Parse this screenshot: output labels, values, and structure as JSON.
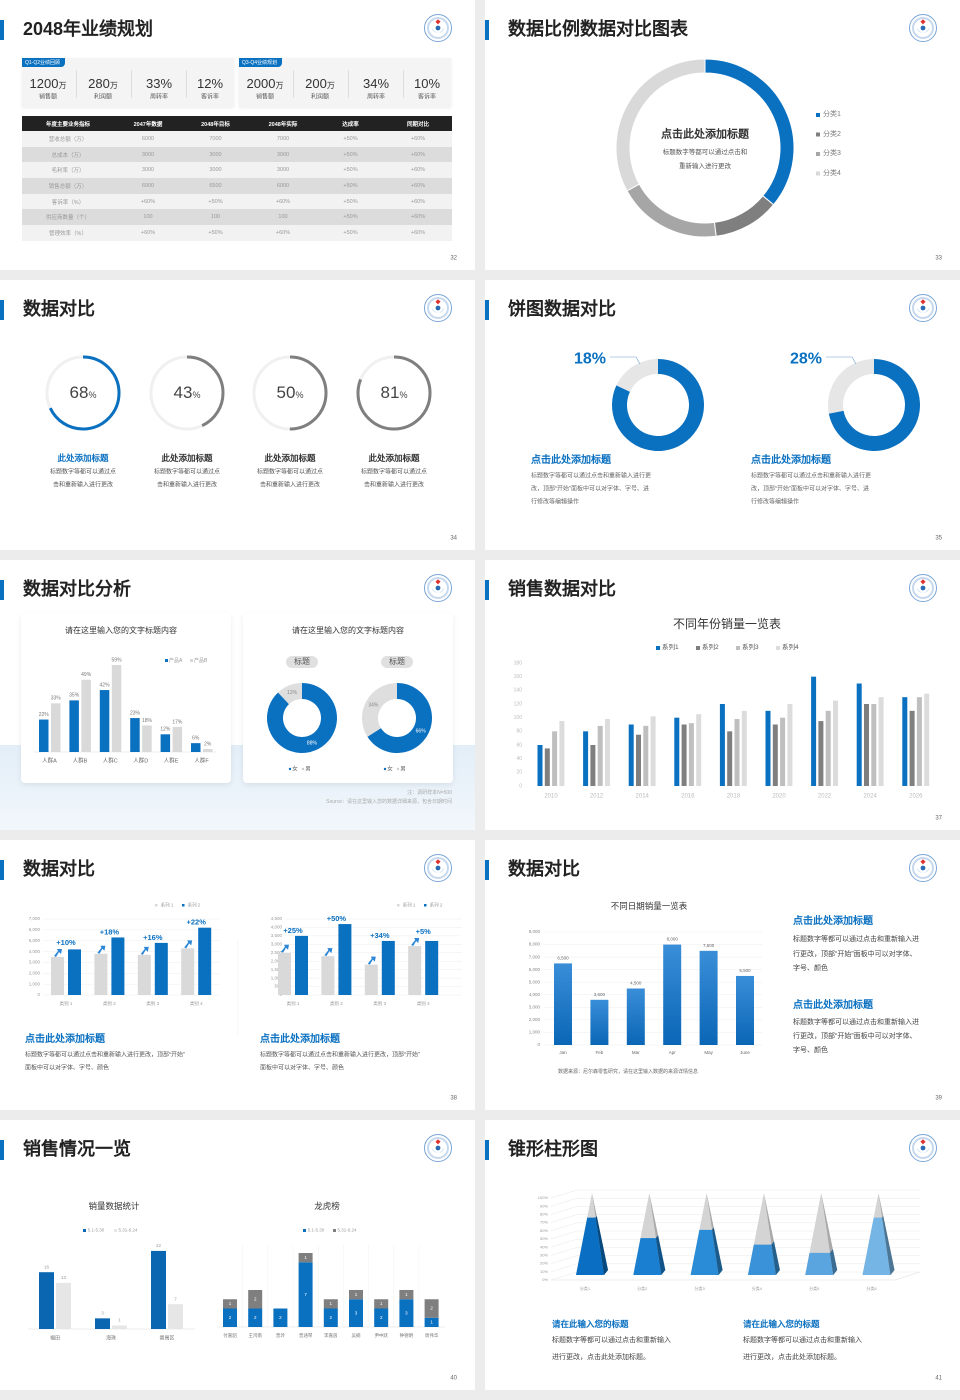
{
  "colors": {
    "accent": "#0a70c0",
    "dark_gray": "#7f7f7f",
    "mid_gray": "#a6a6a6",
    "light_gray": "#d9d9d9",
    "background": "#ececec"
  },
  "icons": {
    "logo": "round-emblem-logo",
    "arrow": "growth-arrow-icon"
  },
  "slides": {
    "s32": {
      "title": "2048年业绩规划",
      "page": "32",
      "cards": [
        {
          "badge": "Q1-Q2业绩回顾",
          "stats": [
            {
              "value": "1200",
              "unit": "万",
              "label": "销售额"
            },
            {
              "value": "280",
              "unit": "万",
              "label": "利润额"
            },
            {
              "value": "33%",
              "unit": "",
              "label": "周转率"
            },
            {
              "value": "12%",
              "unit": "",
              "label": "客诉率"
            }
          ]
        },
        {
          "badge": "Q3-Q4业绩规划",
          "stats": [
            {
              "value": "2000",
              "unit": "万",
              "label": "销售额"
            },
            {
              "value": "200",
              "unit": "万",
              "label": "利润额"
            },
            {
              "value": "34%",
              "unit": "",
              "label": "周转率"
            },
            {
              "value": "10%",
              "unit": "",
              "label": "客诉率"
            }
          ]
        }
      ],
      "table": {
        "headers": [
          "年度主要业务指标",
          "2047年数据",
          "2048年目标",
          "2048年实际",
          "达成率",
          "同期对比"
        ],
        "rows": [
          [
            "营收总额（万）",
            "6000",
            "7000",
            "7000",
            "+50%",
            "+60%"
          ],
          [
            "总成本（万）",
            "3000",
            "3000",
            "3000",
            "+50%",
            "+60%"
          ],
          [
            "毛利率（万）",
            "3000",
            "3000",
            "3000",
            "+50%",
            "+60%"
          ],
          [
            "销售总额（万）",
            "6000",
            "6500",
            "6000",
            "+50%",
            "+60%"
          ],
          [
            "客诉率（%）",
            "+60%",
            "+50%",
            "+60%",
            "+50%",
            "+60%"
          ],
          [
            "供应商数量（个）",
            "100",
            "100",
            "100",
            "+50%",
            "+60%"
          ],
          [
            "管理效率（%）",
            "+60%",
            "+50%",
            "+60%",
            "+50%",
            "+60%"
          ]
        ]
      }
    },
    "s33": {
      "title": "数据比例数据对比图表",
      "page": "33",
      "center_title": "点击此处添加标题",
      "center_desc": [
        "标题数字等都可以通过点击和",
        "重新输入进行更改"
      ]
    },
    "s34": {
      "title": "数据对比",
      "page": "34",
      "items": [
        {
          "value": 68,
          "unit": "%",
          "title": "此处添加标题",
          "desc": [
            "标题数字等都可以通过点",
            "击和重新输入进行更改"
          ]
        },
        {
          "value": 43,
          "unit": "%",
          "title": "此处添加标题",
          "desc": [
            "标题数字等都可以通过点",
            "击和重新输入进行更改"
          ]
        },
        {
          "value": 50,
          "unit": "%",
          "title": "此处添加标题",
          "desc": [
            "标题数字等都可以通过点",
            "击和重新输入进行更改"
          ]
        },
        {
          "value": 81,
          "unit": "%",
          "title": "此处添加标题",
          "desc": [
            "标题数字等都可以通过点",
            "击和重新输入进行更改"
          ]
        }
      ]
    },
    "s35": {
      "title": "饼图数据对比",
      "page": "35",
      "items": [
        {
          "pct_label": "18%",
          "title": "点击此处添加标题",
          "desc": [
            "标题数字等都可以通过点击和重新输入进行更",
            "改，顶部“开始”面板中可以对字体、字号、进",
            "行修改等编辑操作"
          ]
        },
        {
          "pct_label": "28%",
          "title": "点击此处添加标题",
          "desc": [
            "标题数字等都可以通过点击和重新输入进行更",
            "改，顶部“开始”面板中可以对字体、字号、进",
            "行修改等编辑操作"
          ]
        }
      ]
    },
    "s36": {
      "title": "数据对比分析",
      "page": "36",
      "note": "注：调研样本N=500",
      "source": "Source：请在这里输入您的数据详细来源，包含日期时间"
    },
    "s37": {
      "title": "销售数据对比",
      "page": "37"
    },
    "s38": {
      "title": "数据对比",
      "page": "38",
      "blocks": [
        {
          "title": "点击此处添加标题",
          "desc": [
            "标题数字等都可以通过点击和重新输入进行更改，顶部“开始”",
            "面板中可以对字体、字号、颜色"
          ]
        },
        {
          "title": "点击此处添加标题",
          "desc": [
            "标题数字等都可以通过点击和重新输入进行更改，顶部“开始”",
            "面板中可以对字体、字号、颜色"
          ]
        }
      ]
    },
    "s39": {
      "title": "数据对比",
      "page": "39",
      "source": "数据来源：尼尔森零售研究，请在这里输入数据的来源详情信息",
      "blocks": [
        {
          "title": "点击此处添加标题",
          "desc": [
            "标题数字等都可以通过点击和重新输入进",
            "行更改，顶部“开始”面板中可以对字体、",
            "字号、颜色"
          ]
        },
        {
          "title": "点击此处添加标题",
          "desc": [
            "标题数字等都可以通过点击和重新输入进",
            "行更改，顶部“开始”面板中可以对字体、",
            "字号、颜色"
          ]
        }
      ]
    },
    "s40": {
      "title": "销售情况一览",
      "page": "40"
    },
    "s41": {
      "title": "锥形柱形图",
      "page": "41",
      "blocks": [
        {
          "title": "请在此输入您的标题",
          "desc": [
            "标题数字等都可以通过点击和重新输入",
            "进行更改，点击此处添加标题。"
          ]
        },
        {
          "title": "请在此输入您的标题",
          "desc": [
            "标题数字等都可以通过点击和重新输入",
            "进行更改，点击此处添加标题。"
          ]
        }
      ]
    }
  },
  "chart_data": [
    {
      "type": "pie",
      "categories": [
        "分类1",
        "分类2",
        "分类3",
        "分类4"
      ],
      "values": [
        36,
        12,
        19,
        33
      ],
      "legend": "right"
    },
    {
      "type": "pie",
      "values": [
        18,
        82
      ]
    },
    {
      "type": "pie",
      "values": [
        28,
        72
      ]
    },
    {
      "type": "bar",
      "title": "请在这里输入您的文字标题内容",
      "categories": [
        "人群A",
        "人群B",
        "人群C",
        "人群D",
        "人群E",
        "人群F"
      ],
      "series": [
        {
          "name": "产品A",
          "values": [
            22,
            35,
            42,
            23,
            12,
            6
          ]
        },
        {
          "name": "产品B",
          "values": [
            33,
            49,
            59,
            18,
            17,
            2
          ]
        }
      ],
      "unit": "%",
      "legend": "top-right"
    },
    {
      "type": "pie",
      "title": "请在这里输入您的文字标题内容",
      "label": "标题",
      "categories": [
        "女",
        "男"
      ],
      "values": [
        88,
        12
      ]
    },
    {
      "type": "pie",
      "label": "标题",
      "categories": [
        "女",
        "男"
      ],
      "values": [
        66,
        34
      ]
    },
    {
      "type": "bar",
      "title": "不同年份销量一览表",
      "categories": [
        "2010",
        "2012",
        "2014",
        "2016",
        "2018",
        "2020",
        "2022",
        "2024",
        "2026"
      ],
      "series": [
        {
          "name": "系列1",
          "values": [
            60,
            80,
            90,
            100,
            120,
            110,
            160,
            150,
            130
          ]
        },
        {
          "name": "系列2",
          "values": [
            55,
            60,
            75,
            90,
            80,
            90,
            95,
            120,
            110
          ]
        },
        {
          "name": "系列3",
          "values": [
            80,
            88,
            88,
            92,
            98,
            100,
            110,
            120,
            130
          ]
        },
        {
          "name": "系列4",
          "values": [
            95,
            98,
            102,
            105,
            110,
            120,
            125,
            130,
            135
          ]
        }
      ],
      "ylim": [
        0,
        180
      ],
      "yticks": [
        0,
        20,
        40,
        60,
        80,
        100,
        120,
        140,
        160,
        180
      ],
      "legend": "top"
    },
    {
      "type": "bar",
      "categories": [
        "类别 1",
        "类别 2",
        "类别 3",
        "类别 4"
      ],
      "series": [
        {
          "name": "系列 1",
          "values": [
            3500,
            3800,
            3700,
            4300
          ]
        },
        {
          "name": "系列 2",
          "values": [
            4200,
            5300,
            4800,
            6200
          ]
        }
      ],
      "annotations": [
        "+10%",
        "+18%",
        "+16%",
        "+22%"
      ],
      "ylim": [
        0,
        7000
      ],
      "yticks": [
        0,
        1000,
        2000,
        3000,
        4000,
        5000,
        6000,
        7000
      ],
      "legend": "top-right"
    },
    {
      "type": "bar",
      "categories": [
        "类别 1",
        "类别 2",
        "类别 3",
        "类别 4"
      ],
      "series": [
        {
          "name": "系列 1",
          "values": [
            2500,
            2300,
            1800,
            2900
          ]
        },
        {
          "name": "系列 2",
          "values": [
            3500,
            4200,
            3200,
            3200
          ]
        }
      ],
      "annotations": [
        "+25%",
        "+50%",
        "+34%",
        "+5%"
      ],
      "ylim": [
        0,
        4500
      ],
      "yticks": [
        0,
        500,
        1000,
        1500,
        2000,
        2500,
        3000,
        3500,
        4000,
        4500
      ],
      "legend": "top-right"
    },
    {
      "type": "bar",
      "title": "不同日期销量一览表",
      "categories": [
        "Jan",
        "Feb",
        "Mar",
        "Apr",
        "May",
        "June"
      ],
      "values": [
        6500,
        3600,
        4500,
        8000,
        7500,
        5500
      ],
      "data_labels": [
        "6,500",
        "3,600",
        "4,500",
        "8,000",
        "7,500",
        "5,500"
      ],
      "ylim": [
        0,
        9000
      ],
      "yticks": [
        0,
        1000,
        2000,
        3000,
        4000,
        5000,
        6000,
        7000,
        8000,
        9000
      ]
    },
    {
      "type": "bar",
      "title": "销量数据统计",
      "categories": [
        "福田",
        "海珠",
        "番禺区"
      ],
      "series": [
        {
          "name": "5.1-5.30",
          "values": [
            16,
            3,
            22
          ]
        },
        {
          "name": "5.31-6.24",
          "values": [
            13,
            1,
            7
          ]
        }
      ],
      "legend": "top"
    },
    {
      "type": "bar",
      "stacked": true,
      "title": "龙虎榜",
      "categories": [
        "付嘉韶",
        "王鸿南",
        "曾玲",
        "曾涵琴",
        "李嘉茵",
        "吴楠",
        "尹中跃",
        "钟德明",
        "周伟华"
      ],
      "series": [
        {
          "name": "5.1-5.30",
          "values": [
            2,
            2,
            2,
            7,
            2,
            3,
            2,
            3,
            1
          ]
        },
        {
          "name": "5.31-6.24",
          "values": [
            1,
            2,
            0,
            1,
            1,
            1,
            1,
            1,
            2
          ]
        }
      ],
      "legend": "top"
    },
    {
      "type": "bar",
      "shape": "pyramid",
      "categories": [
        "分类1",
        "分类2",
        "分类3",
        "分类4",
        "分类5",
        "分类6"
      ],
      "values": [
        70,
        45,
        55,
        37,
        27,
        70
      ],
      "ylim": [
        0,
        100
      ],
      "unit": "%",
      "yticks": [
        "0%",
        "10%",
        "20%",
        "30%",
        "40%",
        "50%",
        "60%",
        "70%",
        "80%",
        "90%",
        "100%"
      ]
    }
  ]
}
